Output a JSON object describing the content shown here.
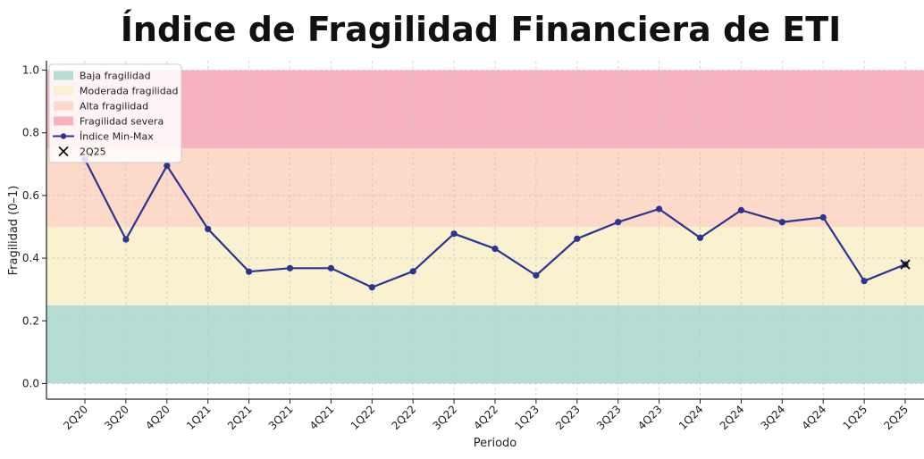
{
  "chart_data": {
    "type": "line",
    "title": "Índice de Fragilidad Financiera de ETI",
    "xlabel": "Periodo",
    "ylabel": "Fragilidad (0–1)",
    "ylim": [
      -0.05,
      1.03
    ],
    "yticks": [
      0.0,
      0.2,
      0.4,
      0.6,
      0.8,
      1.0
    ],
    "ytick_labels": [
      "0.0",
      "0.2",
      "0.4",
      "0.6",
      "0.8",
      "1.0"
    ],
    "grid": true,
    "legend_position": "top-left",
    "categories": [
      "2Q20",
      "3Q20",
      "4Q20",
      "1Q21",
      "2Q21",
      "3Q21",
      "4Q21",
      "1Q22",
      "2Q22",
      "3Q22",
      "4Q22",
      "1Q23",
      "2Q23",
      "3Q23",
      "4Q23",
      "1Q24",
      "2Q24",
      "3Q24",
      "4Q24",
      "1Q25",
      "2Q25"
    ],
    "bands": [
      {
        "name": "Baja fragilidad",
        "from": 0.0,
        "to": 0.25,
        "color": "#b5ddd3"
      },
      {
        "name": "Moderada fragilidad",
        "from": 0.25,
        "to": 0.5,
        "color": "#f9f1d0"
      },
      {
        "name": "Alta fragilidad",
        "from": 0.5,
        "to": 0.75,
        "color": "#fcd9c8"
      },
      {
        "name": "Fragilidad severa",
        "from": 0.75,
        "to": 1.0,
        "color": "#f7b2c0"
      }
    ],
    "series": [
      {
        "name": "Índice Min-Max",
        "color": "#2b3590",
        "values": [
          0.715,
          0.46,
          0.695,
          0.493,
          0.357,
          0.368,
          0.368,
          0.307,
          0.358,
          0.478,
          0.43,
          0.345,
          0.462,
          0.515,
          0.557,
          0.465,
          0.553,
          0.515,
          0.53,
          0.327,
          0.38
        ]
      }
    ],
    "highlight": {
      "name": "2Q25",
      "category": "2Q25",
      "value": 0.38,
      "marker": "x",
      "color": "#111111"
    }
  }
}
